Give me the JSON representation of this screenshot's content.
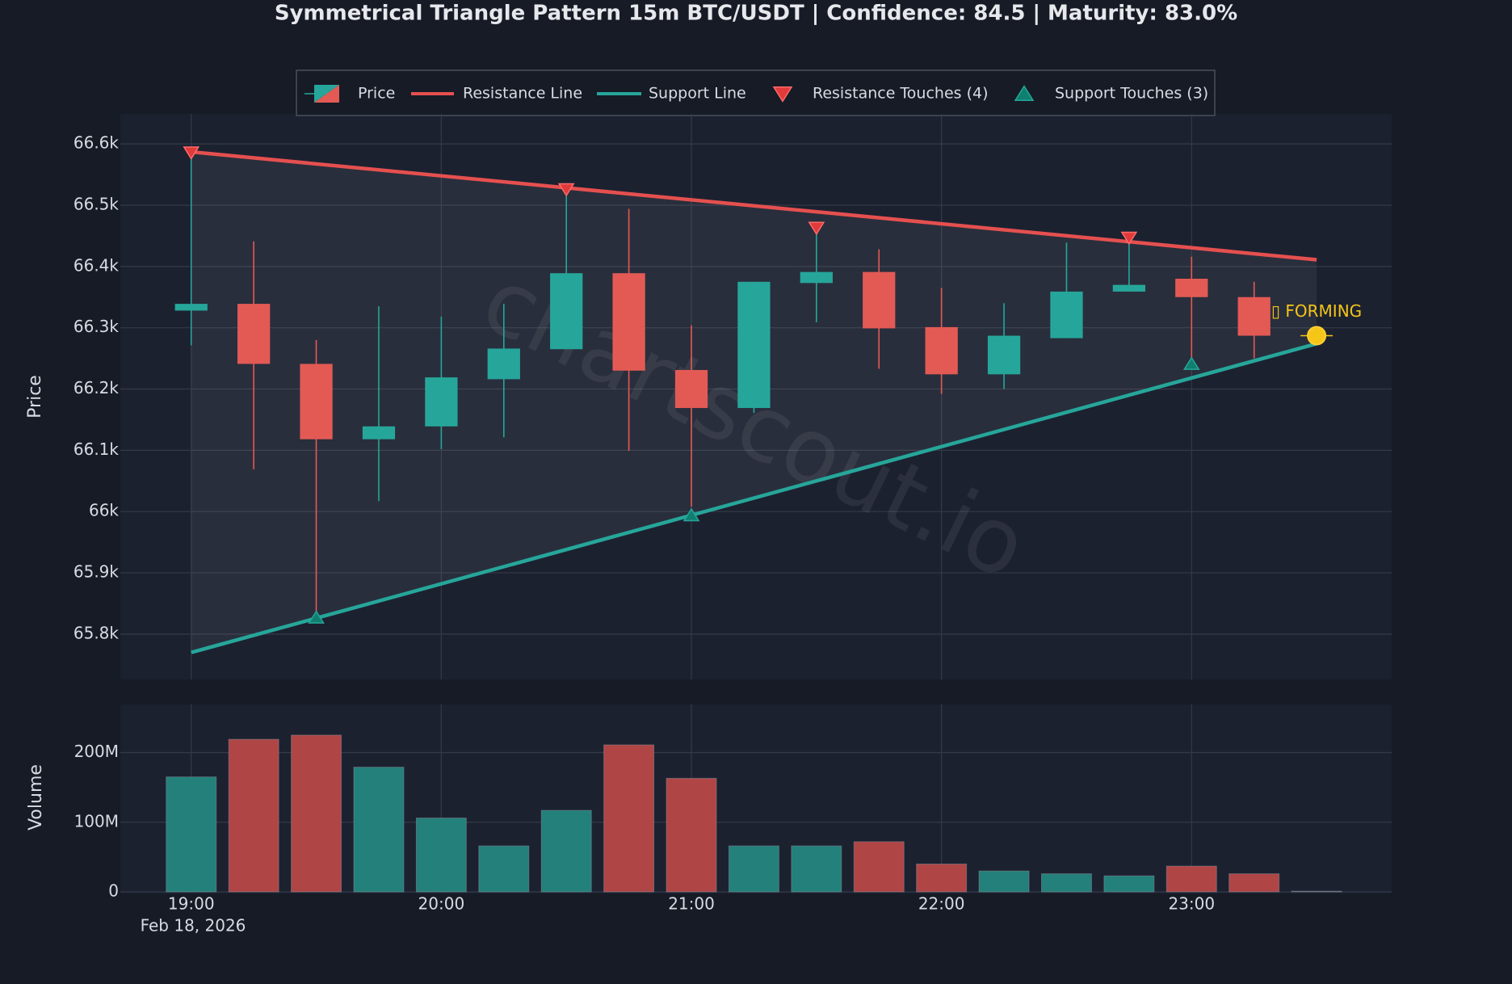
{
  "chart_data": {
    "type": "candlestick",
    "title": "Symmetrical Triangle Pattern 15m BTC/USDT | Confidence: 84.5 | Maturity: 83.0%",
    "name": "Price",
    "ylabel": "Price",
    "date_label": "Feb 18, 2026",
    "watermark": "chartscout.io",
    "increasing_color": "#26a69a",
    "decreasing_color": "#e35a55",
    "grid": true,
    "x": [
      "2026-02-18 19:00",
      "2026-02-18 19:15",
      "2026-02-18 19:30",
      "2026-02-18 19:45",
      "2026-02-18 20:00",
      "2026-02-18 20:15",
      "2026-02-18 20:30",
      "2026-02-18 20:45",
      "2026-02-18 21:00",
      "2026-02-18 21:15",
      "2026-02-18 21:30",
      "2026-02-18 21:45",
      "2026-02-18 22:00",
      "2026-02-18 22:15",
      "2026-02-18 22:30",
      "2026-02-18 22:45",
      "2026-02-18 23:00",
      "2026-02-18 23:15"
    ],
    "open": [
      66328,
      66339,
      66241,
      66118,
      66139,
      66216,
      66265,
      66389,
      66231,
      66169,
      66373,
      66391,
      66301,
      66224,
      66283,
      66359,
      66380,
      66350
    ],
    "high": [
      66586,
      66441,
      66280,
      66335,
      66318,
      66339,
      66528,
      66494,
      66304,
      66375,
      66460,
      66428,
      66365,
      66340,
      66439,
      66447,
      66416,
      66375
    ],
    "low": [
      66271,
      66069,
      65835,
      66017,
      66102,
      66121,
      66265,
      66099,
      66008,
      66161,
      66309,
      66233,
      66192,
      66200,
      66283,
      66359,
      66241,
      66250
    ],
    "close": [
      66339,
      66241,
      66118,
      66139,
      66219,
      66266,
      66389,
      66230,
      66169,
      66375,
      66391,
      66299,
      66224,
      66287,
      66359,
      66370,
      66350,
      66287
    ],
    "xlim": [
      "2026-02-18 18:43",
      "2026-02-18 23:48"
    ],
    "xticks": [
      {
        "value": "2026-02-18 19:00",
        "label": "19:00"
      },
      {
        "value": "2026-02-18 20:00",
        "label": "20:00"
      },
      {
        "value": "2026-02-18 21:00",
        "label": "21:00"
      },
      {
        "value": "2026-02-18 22:00",
        "label": "22:00"
      },
      {
        "value": "2026-02-18 23:00",
        "label": "23:00"
      }
    ],
    "ylim": [
      65726,
      66649
    ],
    "yticks": [
      {
        "value": 65800,
        "label": "65.8k"
      },
      {
        "value": 65900,
        "label": "65.9k"
      },
      {
        "value": 66000,
        "label": "66k"
      },
      {
        "value": 66100,
        "label": "66.1k"
      },
      {
        "value": 66200,
        "label": "66.2k"
      },
      {
        "value": 66300,
        "label": "66.3k"
      },
      {
        "value": 66400,
        "label": "66.4k"
      },
      {
        "value": 66500,
        "label": "66.5k"
      },
      {
        "value": 66600,
        "label": "66.6k"
      }
    ],
    "resistance_line": {
      "name": "Resistance Line",
      "color": "#e5504f",
      "x": [
        "2026-02-18 19:00",
        "2026-02-18 23:30"
      ],
      "values": [
        66587,
        66411
      ]
    },
    "support_line": {
      "name": "Support Line",
      "color": "#26a69a",
      "x": [
        "2026-02-18 19:00",
        "2026-02-18 23:30"
      ],
      "values": [
        65770,
        66274
      ]
    },
    "resistance_touches": {
      "name": "Resistance Touches (4)",
      "color": "#e03a3a",
      "x": [
        "2026-02-18 19:00",
        "2026-02-18 20:30",
        "2026-02-18 21:30",
        "2026-02-18 22:45"
      ],
      "values": [
        66586,
        66526,
        66463,
        66447
      ]
    },
    "support_touches": {
      "name": "Support Touches (3)",
      "color": "#0f7f6f",
      "x": [
        "2026-02-18 19:30",
        "2026-02-18 21:00",
        "2026-02-18 23:00"
      ],
      "values": [
        65827,
        65994,
        66241
      ]
    },
    "forming": {
      "label": "▯ FORMING",
      "color": "#f5c518",
      "x": "2026-02-18 23:30",
      "value": 66287
    },
    "volume": {
      "ylabel": "Volume",
      "x": [
        "2026-02-18 19:00",
        "2026-02-18 19:15",
        "2026-02-18 19:30",
        "2026-02-18 19:45",
        "2026-02-18 20:00",
        "2026-02-18 20:15",
        "2026-02-18 20:30",
        "2026-02-18 20:45",
        "2026-02-18 21:00",
        "2026-02-18 21:15",
        "2026-02-18 21:30",
        "2026-02-18 21:45",
        "2026-02-18 22:00",
        "2026-02-18 22:15",
        "2026-02-18 22:30",
        "2026-02-18 22:45",
        "2026-02-18 23:00",
        "2026-02-18 23:15",
        "2026-02-18 23:30"
      ],
      "values": [
        165000000,
        219000000,
        225000000,
        179000000,
        106000000,
        66000000,
        117000000,
        211000000,
        163000000,
        66000000,
        66000000,
        72000000,
        40000000,
        30000000,
        26000000,
        23000000,
        37000000,
        26000000,
        1000000
      ],
      "colors": [
        "#23807a",
        "#b04546",
        "#b04546",
        "#23807a",
        "#23807a",
        "#23807a",
        "#23807a",
        "#b04546",
        "#b04546",
        "#23807a",
        "#23807a",
        "#b04546",
        "#b04546",
        "#23807a",
        "#23807a",
        "#23807a",
        "#b04546",
        "#b04546",
        "#5a6070"
      ],
      "ylim": [
        0,
        269000000
      ],
      "yticks": [
        0,
        {
          "value": 100000000,
          "label": "100M"
        },
        {
          "value": 200000000,
          "label": "200M"
        }
      ]
    }
  }
}
